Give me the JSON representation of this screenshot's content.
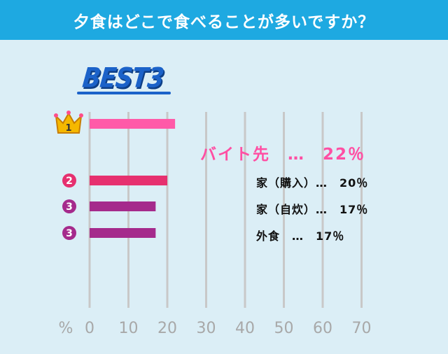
{
  "header": {
    "title": "夕食はどこで食べることが多いですか？"
  },
  "badge": {
    "text": "BEST3"
  },
  "colors": {
    "header": "#1ea9e1",
    "background": "#dbeef6",
    "rank1": "#ff5aa8",
    "rank2": "#e6306f",
    "rank3": "#a52a8c",
    "crown": "#f5b800",
    "grid": "#c8c8c8"
  },
  "chart_data": {
    "type": "bar",
    "orientation": "horizontal",
    "title": "夕食はどこで食べることが多いですか？",
    "xlabel": "%",
    "xlim": [
      0,
      70
    ],
    "xticks": [
      0,
      10,
      20,
      30,
      40,
      50,
      60,
      70
    ],
    "grid": true,
    "bars": [
      {
        "rank": "1",
        "category": "バイト先",
        "value": 22,
        "label": "バイト先　…　22％"
      },
      {
        "rank": "2",
        "category": "家（購入）",
        "value": 20,
        "label": "家（購入）…　20％"
      },
      {
        "rank": "3",
        "category": "家（自炊）",
        "value": 17,
        "label": "家（自炊）…　17％"
      },
      {
        "rank": "3",
        "category": "外食",
        "value": 17,
        "label": "外食　…　17％"
      }
    ]
  }
}
